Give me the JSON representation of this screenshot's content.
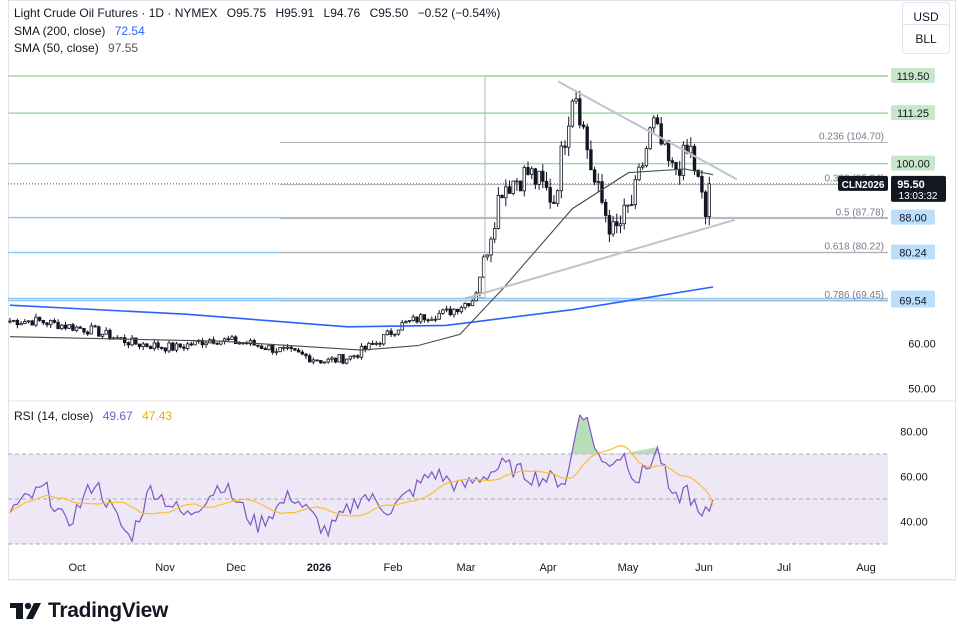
{
  "header": {
    "symbol_line": "Light Crude Oil Futures · 1D · NYMEX",
    "open": "O95.75",
    "high": "H95.91",
    "low": "L94.76",
    "close": "C95.50",
    "change": "−0.52 (−0.54%)",
    "sma200_label": "SMA (200, close)",
    "sma200_value": "72.54",
    "sma50_label": "SMA (50, close)",
    "sma50_value": "97.55",
    "rsi_label": "RSI (14, close)",
    "rsi_value": "49.67",
    "rsi_ma_value": "47.43"
  },
  "buttons": {
    "currency": "USD",
    "bll": "BLL"
  },
  "brand": {
    "name": "TradingView"
  },
  "colors": {
    "up": "#131722",
    "down": "#131722",
    "sma200": "#2962ff",
    "sma50": "#131722",
    "rsi": "#7e57c2",
    "rsi_ma": "#fbc02d",
    "green_level": "#a5d6a7",
    "blue_level": "#90caf9",
    "rsi_band": "#ede7f6"
  },
  "chart_data": {
    "type": "candlestick",
    "x_labels": [
      "Oct",
      "Nov",
      "Dec",
      "2026",
      "Feb",
      "Mar",
      "Apr",
      "May",
      "Jun",
      "Jul",
      "Aug"
    ],
    "y_ticks": [
      50.0,
      60.0
    ],
    "last_price": 95.5,
    "last_price_label": "95.50",
    "symbol_tag": "CLN2026",
    "countdown": "13:03:32",
    "levels": [
      {
        "value": 119.5,
        "label": "119.50",
        "kind": "green"
      },
      {
        "value": 111.25,
        "label": "111.25",
        "kind": "green"
      },
      {
        "value": 100.0,
        "label": "100.00",
        "kind": "green"
      },
      {
        "value": 88.0,
        "label": "88.00",
        "kind": "blue"
      },
      {
        "value": 80.24,
        "label": "80.24",
        "kind": "blue"
      },
      {
        "value": 70.0,
        "label": "70.00",
        "kind": "blue"
      },
      {
        "value": 69.54,
        "label": "69.54",
        "kind": "blue"
      }
    ],
    "fibonacci": [
      {
        "ratio": "0.236",
        "value": 104.7,
        "label": "0.236 (104.70)"
      },
      {
        "ratio": "0.382",
        "value": 95.34,
        "label": "0.382 (95.34)"
      },
      {
        "ratio": "0.5",
        "value": 87.78,
        "label": "0.5 (87.78)"
      },
      {
        "ratio": "0.618",
        "value": 80.22,
        "label": "0.618 (80.22)"
      },
      {
        "ratio": "0.786",
        "value": 69.45,
        "label": "0.786 (69.45)"
      }
    ],
    "triangle": {
      "swing_low": 70.2,
      "swing_high": 119.5,
      "apex": 96.5
    },
    "close_anchors": [
      [
        "Sep",
        65
      ],
      [
        "Oct",
        63
      ],
      [
        "Oct",
        60
      ],
      [
        "Nov",
        59
      ],
      [
        "Nov",
        61
      ],
      [
        "Dec",
        60
      ],
      [
        "Dec",
        58
      ],
      [
        "Jan",
        56
      ],
      [
        "Jan",
        57
      ],
      [
        "Jan",
        60
      ],
      [
        "Feb",
        64
      ],
      [
        "Feb",
        66
      ],
      [
        "Feb",
        67
      ],
      [
        "Mar",
        70
      ],
      [
        "Mar",
        95
      ],
      [
        "Mar",
        98
      ],
      [
        "Apr",
        92
      ],
      [
        "Apr",
        118
      ],
      [
        "Apr",
        96
      ],
      [
        "Apr",
        84
      ],
      [
        "May",
        92
      ],
      [
        "May",
        109
      ],
      [
        "May",
        98
      ],
      [
        "May",
        103
      ],
      [
        "Jun",
        88
      ],
      [
        "Jun",
        95.5
      ]
    ],
    "sma200_anchors": [
      [
        0,
        68.5
      ],
      [
        0.25,
        66.5
      ],
      [
        0.48,
        63.7
      ],
      [
        0.62,
        64.0
      ],
      [
        0.8,
        67.5
      ],
      [
        1.0,
        72.54
      ]
    ],
    "sma50_anchors": [
      [
        0,
        61.5
      ],
      [
        0.3,
        60.5
      ],
      [
        0.5,
        58.5
      ],
      [
        0.58,
        59.5
      ],
      [
        0.64,
        62
      ],
      [
        0.7,
        72
      ],
      [
        0.8,
        90
      ],
      [
        0.88,
        98
      ],
      [
        0.96,
        98.8
      ],
      [
        1.0,
        97.55
      ]
    ],
    "rsi": {
      "ticks": [
        40.0,
        60.0,
        80.0
      ],
      "overbought": 70,
      "oversold": 30,
      "midline": 50,
      "current": 49.67,
      "ma": 47.43,
      "anchors": [
        [
          0,
          45
        ],
        [
          0.05,
          55
        ],
        [
          0.08,
          38
        ],
        [
          0.12,
          58
        ],
        [
          0.17,
          32
        ],
        [
          0.2,
          55
        ],
        [
          0.25,
          42
        ],
        [
          0.3,
          57
        ],
        [
          0.35,
          38
        ],
        [
          0.4,
          52
        ],
        [
          0.45,
          35
        ],
        [
          0.5,
          52
        ],
        [
          0.54,
          45
        ],
        [
          0.6,
          62
        ],
        [
          0.64,
          55
        ],
        [
          0.7,
          65
        ],
        [
          0.74,
          60
        ],
        [
          0.79,
          58
        ],
        [
          0.81,
          92
        ],
        [
          0.84,
          65
        ],
        [
          0.87,
          70
        ],
        [
          0.89,
          58
        ],
        [
          0.92,
          72
        ],
        [
          0.94,
          48
        ],
        [
          0.96,
          55
        ],
        [
          0.98,
          40
        ],
        [
          1.0,
          49.67
        ]
      ]
    }
  }
}
